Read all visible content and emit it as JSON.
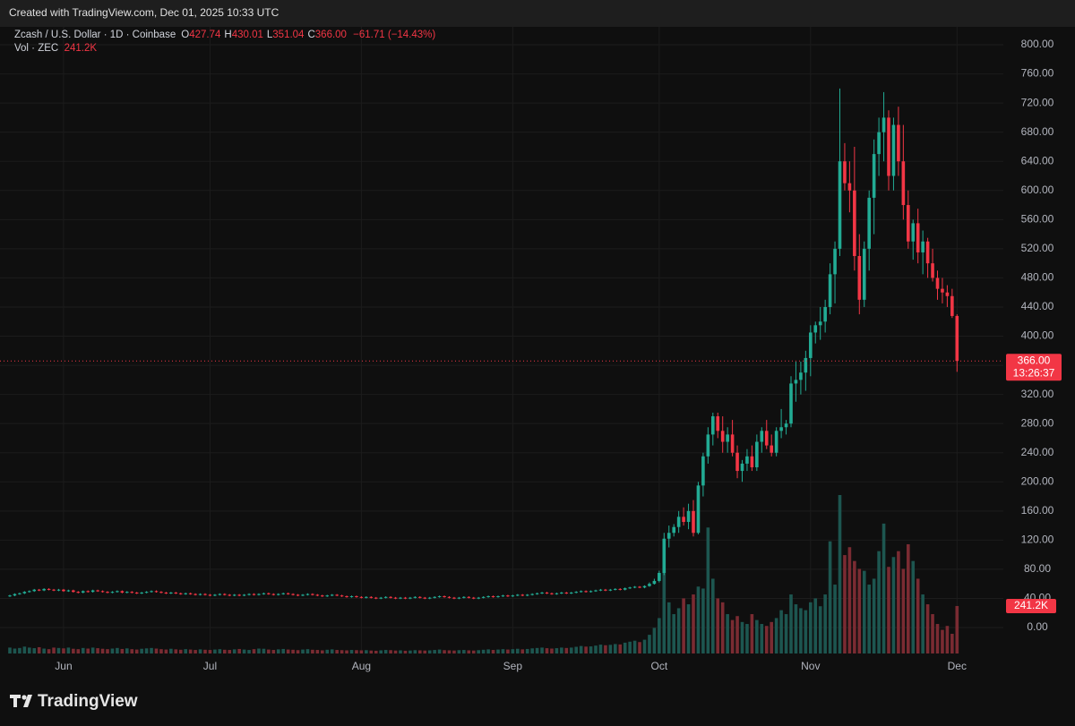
{
  "header": {
    "created": "Created with TradingView.com, Dec 01, 2025 10:33 UTC"
  },
  "footer": {
    "brand": "TradingView"
  },
  "chart_data": {
    "type": "candlestick",
    "title": "Zcash / U.S. Dollar · 1D · Coinbase",
    "ohlc_legend": [
      {
        "key": "O",
        "value": "427.74"
      },
      {
        "key": "H",
        "value": "430.01"
      },
      {
        "key": "L",
        "value": "351.04"
      },
      {
        "key": "C",
        "value": "366.00"
      }
    ],
    "change": "−61.71 (−14.43%)",
    "volume_title": "Vol · ZEC",
    "volume_label": "241.2K",
    "last_price": "366.00",
    "countdown": "13:26:37",
    "up_color": "#22ab94",
    "down_color": "#f23645",
    "volume_up_color": "#1d5650",
    "volume_down_color": "#7a2b32",
    "grid": true,
    "ylim": [
      -35.6,
      824.6
    ],
    "yticks": [
      {
        "value": 0,
        "label": "0.00"
      },
      {
        "value": 40,
        "label": "40.00"
      },
      {
        "value": 80,
        "label": "80.00"
      },
      {
        "value": 120,
        "label": "120.00"
      },
      {
        "value": 160,
        "label": "160.00"
      },
      {
        "value": 200,
        "label": "200.00"
      },
      {
        "value": 240,
        "label": "240.00"
      },
      {
        "value": 280,
        "label": "280.00"
      },
      {
        "value": 320,
        "label": "320.00"
      },
      {
        "value": 360,
        "label": "360.00"
      },
      {
        "value": 400,
        "label": "400.00"
      },
      {
        "value": 440,
        "label": "440.00"
      },
      {
        "value": 480,
        "label": "480.00"
      },
      {
        "value": 520,
        "label": "520.00"
      },
      {
        "value": 560,
        "label": "560.00"
      },
      {
        "value": 600,
        "label": "600.00"
      },
      {
        "value": 640,
        "label": "640.00"
      },
      {
        "value": 680,
        "label": "680.00"
      },
      {
        "value": 720,
        "label": "720.00"
      },
      {
        "value": 760,
        "label": "760.00"
      },
      {
        "value": 800,
        "label": "800.00"
      }
    ],
    "categories": [
      null,
      null,
      null,
      null,
      null,
      null,
      null,
      null,
      null,
      null,
      null,
      "Jun",
      null,
      null,
      null,
      null,
      null,
      null,
      null,
      null,
      null,
      null,
      null,
      null,
      null,
      null,
      null,
      null,
      null,
      null,
      null,
      null,
      null,
      null,
      null,
      null,
      null,
      null,
      null,
      null,
      null,
      "Jul",
      null,
      null,
      null,
      null,
      null,
      null,
      null,
      null,
      null,
      null,
      null,
      null,
      null,
      null,
      null,
      null,
      null,
      null,
      null,
      null,
      null,
      null,
      null,
      null,
      null,
      null,
      null,
      null,
      null,
      null,
      "Aug",
      null,
      null,
      null,
      null,
      null,
      null,
      null,
      null,
      null,
      null,
      null,
      null,
      null,
      null,
      null,
      null,
      null,
      null,
      null,
      null,
      null,
      null,
      null,
      null,
      null,
      null,
      null,
      null,
      null,
      null,
      "Sep",
      null,
      null,
      null,
      null,
      null,
      null,
      null,
      null,
      null,
      null,
      null,
      null,
      null,
      null,
      null,
      null,
      null,
      null,
      null,
      null,
      null,
      null,
      null,
      null,
      null,
      null,
      null,
      null,
      null,
      "Oct",
      null,
      null,
      null,
      null,
      null,
      null,
      null,
      null,
      null,
      null,
      null,
      null,
      null,
      null,
      null,
      null,
      null,
      null,
      null,
      null,
      null,
      null,
      null,
      null,
      null,
      null,
      null,
      null,
      null,
      null,
      "Nov",
      null,
      null,
      null,
      null,
      null,
      null,
      null,
      null,
      null,
      null,
      null,
      null,
      null,
      null,
      null,
      null,
      null,
      null,
      null,
      null,
      null,
      null,
      null,
      null,
      null,
      null,
      null,
      null,
      null,
      "Dec"
    ],
    "open": [
      43,
      44,
      46,
      47,
      49,
      50,
      52,
      51,
      53,
      52,
      51,
      52,
      50,
      51,
      49,
      48,
      50,
      49,
      51,
      50,
      49,
      48,
      49,
      50,
      48,
      49,
      48,
      47,
      48,
      49,
      50,
      49,
      48,
      47,
      48,
      47,
      46,
      47,
      46,
      45,
      46,
      45,
      44,
      45,
      46,
      45,
      44,
      45,
      44,
      45,
      46,
      45,
      46,
      47,
      46,
      45,
      46,
      47,
      46,
      45,
      44,
      45,
      46,
      45,
      44,
      43,
      44,
      45,
      44,
      43,
      42,
      43,
      42,
      41,
      42,
      41,
      40,
      41,
      42,
      41,
      40,
      41,
      40,
      41,
      42,
      41,
      40,
      41,
      42,
      43,
      42,
      41,
      40,
      41,
      42,
      41,
      40,
      41,
      42,
      43,
      42,
      43,
      44,
      43,
      44,
      45,
      44,
      45,
      46,
      47,
      48,
      47,
      46,
      47,
      48,
      47,
      48,
      49,
      50,
      49,
      50,
      51,
      52,
      51,
      52,
      53,
      52,
      54,
      55,
      56,
      55,
      57,
      60,
      64,
      75,
      122,
      130,
      138,
      152,
      145,
      160,
      130,
      195,
      235,
      265,
      290,
      270,
      255,
      265,
      240,
      215,
      225,
      235,
      220,
      255,
      270,
      250,
      240,
      270,
      275,
      280,
      335,
      340,
      350,
      370,
      405,
      415,
      420,
      440,
      485,
      520,
      640,
      610,
      600,
      510,
      450,
      520,
      590,
      650,
      680,
      700,
      620,
      690,
      640,
      580,
      530,
      555,
      515,
      530,
      500,
      480,
      465,
      460,
      455,
      427.74
    ],
    "high": [
      45,
      47,
      48,
      50,
      51,
      53,
      53,
      54,
      54,
      53,
      53,
      53,
      52,
      52,
      50,
      51,
      51,
      52,
      52,
      51,
      50,
      50,
      51,
      51,
      50,
      50,
      49,
      49,
      50,
      51,
      51,
      50,
      49,
      49,
      49,
      48,
      48,
      48,
      47,
      47,
      47,
      46,
      46,
      47,
      47,
      46,
      46,
      46,
      46,
      47,
      47,
      47,
      48,
      48,
      47,
      47,
      48,
      48,
      47,
      46,
      46,
      47,
      47,
      46,
      45,
      45,
      46,
      46,
      45,
      44,
      44,
      44,
      43,
      43,
      43,
      42,
      42,
      43,
      43,
      42,
      42,
      42,
      42,
      43,
      43,
      42,
      42,
      43,
      44,
      44,
      43,
      42,
      42,
      43,
      43,
      42,
      42,
      43,
      44,
      44,
      44,
      45,
      45,
      45,
      46,
      46,
      46,
      47,
      48,
      49,
      49,
      48,
      48,
      49,
      49,
      49,
      50,
      51,
      51,
      51,
      52,
      53,
      53,
      53,
      54,
      54,
      55,
      56,
      57,
      57,
      58,
      62,
      67,
      78,
      130,
      140,
      142,
      160,
      165,
      170,
      175,
      200,
      240,
      275,
      295,
      295,
      290,
      275,
      285,
      250,
      230,
      245,
      250,
      265,
      275,
      285,
      265,
      275,
      300,
      285,
      345,
      365,
      365,
      380,
      415,
      420,
      440,
      450,
      500,
      530,
      740,
      665,
      640,
      660,
      540,
      530,
      600,
      670,
      700,
      735,
      710,
      700,
      715,
      690,
      600,
      560,
      575,
      545,
      535,
      520,
      490,
      480,
      470,
      465,
      430.01
    ],
    "low": [
      42,
      43,
      45,
      46,
      48,
      49,
      50,
      50,
      51,
      50,
      50,
      49,
      49,
      48,
      47,
      47,
      48,
      48,
      49,
      48,
      47,
      47,
      48,
      47,
      47,
      47,
      46,
      46,
      47,
      48,
      48,
      47,
      46,
      46,
      46,
      45,
      45,
      45,
      44,
      44,
      44,
      43,
      43,
      44,
      44,
      43,
      43,
      43,
      43,
      44,
      44,
      44,
      45,
      45,
      44,
      44,
      45,
      45,
      44,
      43,
      43,
      44,
      44,
      43,
      42,
      42,
      43,
      43,
      42,
      41,
      41,
      41,
      40,
      40,
      40,
      39,
      39,
      40,
      40,
      39,
      39,
      39,
      39,
      40,
      40,
      39,
      39,
      40,
      41,
      41,
      40,
      39,
      39,
      40,
      40,
      39,
      39,
      40,
      41,
      41,
      41,
      42,
      42,
      42,
      43,
      43,
      43,
      44,
      45,
      46,
      46,
      45,
      45,
      46,
      46,
      46,
      47,
      48,
      48,
      48,
      49,
      50,
      50,
      50,
      51,
      51,
      51,
      53,
      54,
      54,
      54,
      56,
      59,
      62,
      72,
      110,
      125,
      130,
      140,
      135,
      125,
      128,
      180,
      225,
      250,
      260,
      240,
      240,
      235,
      205,
      200,
      215,
      215,
      215,
      240,
      245,
      235,
      235,
      260,
      265,
      275,
      310,
      320,
      325,
      345,
      390,
      395,
      405,
      430,
      445,
      510,
      600,
      570,
      490,
      430,
      440,
      490,
      540,
      620,
      640,
      600,
      600,
      620,
      560,
      520,
      505,
      500,
      485,
      480,
      475,
      450,
      445,
      440,
      425,
      351.04
    ],
    "close": [
      44,
      46,
      47,
      49,
      50,
      52,
      51,
      53,
      52,
      51,
      52,
      50,
      51,
      49,
      48,
      50,
      49,
      51,
      50,
      49,
      48,
      49,
      50,
      48,
      49,
      48,
      47,
      48,
      49,
      50,
      49,
      48,
      47,
      48,
      47,
      46,
      47,
      46,
      45,
      46,
      45,
      44,
      45,
      46,
      45,
      44,
      45,
      44,
      45,
      46,
      45,
      46,
      47,
      46,
      45,
      46,
      47,
      46,
      45,
      44,
      45,
      46,
      45,
      44,
      43,
      44,
      45,
      44,
      43,
      42,
      43,
      42,
      41,
      42,
      41,
      40,
      41,
      42,
      41,
      40,
      41,
      40,
      41,
      42,
      41,
      40,
      41,
      42,
      43,
      42,
      41,
      40,
      41,
      42,
      41,
      40,
      41,
      42,
      43,
      42,
      43,
      44,
      43,
      44,
      45,
      44,
      45,
      46,
      47,
      48,
      47,
      46,
      47,
      48,
      47,
      48,
      49,
      50,
      49,
      50,
      51,
      52,
      51,
      52,
      53,
      52,
      54,
      55,
      56,
      55,
      57,
      60,
      64,
      75,
      122,
      130,
      138,
      152,
      145,
      160,
      130,
      195,
      235,
      265,
      290,
      270,
      255,
      265,
      240,
      215,
      225,
      235,
      220,
      255,
      270,
      250,
      240,
      270,
      275,
      280,
      335,
      340,
      350,
      370,
      405,
      415,
      420,
      440,
      485,
      520,
      640,
      610,
      600,
      510,
      450,
      520,
      590,
      650,
      680,
      700,
      620,
      690,
      640,
      580,
      530,
      555,
      515,
      530,
      500,
      480,
      465,
      460,
      455,
      427.71,
      366
    ],
    "volume": [
      30,
      25,
      28,
      35,
      30,
      27,
      32,
      25,
      22,
      30,
      28,
      26,
      30,
      24,
      22,
      28,
      25,
      30,
      27,
      24,
      22,
      25,
      28,
      23,
      26,
      22,
      20,
      24,
      26,
      28,
      25,
      22,
      20,
      24,
      21,
      19,
      22,
      20,
      18,
      21,
      19,
      18,
      20,
      22,
      19,
      18,
      21,
      23,
      20,
      18,
      22,
      25,
      24,
      20,
      18,
      21,
      23,
      20,
      19,
      17,
      20,
      22,
      19,
      18,
      16,
      19,
      21,
      18,
      17,
      16,
      18,
      17,
      16,
      17,
      15,
      14,
      16,
      18,
      17,
      15,
      16,
      14,
      15,
      17,
      16,
      15,
      16,
      18,
      20,
      17,
      16,
      15,
      17,
      18,
      16,
      15,
      17,
      19,
      21,
      18,
      20,
      22,
      20,
      22,
      24,
      21,
      23,
      26,
      28,
      30,
      27,
      25,
      27,
      30,
      28,
      30,
      34,
      38,
      35,
      36,
      40,
      45,
      42,
      44,
      48,
      46,
      55,
      60,
      65,
      58,
      70,
      95,
      130,
      180,
      420,
      260,
      200,
      230,
      280,
      250,
      300,
      340,
      330,
      640,
      380,
      280,
      260,
      200,
      170,
      190,
      160,
      150,
      200,
      170,
      150,
      140,
      160,
      180,
      220,
      200,
      300,
      250,
      230,
      220,
      260,
      280,
      240,
      300,
      570,
      350,
      805,
      500,
      540,
      470,
      430,
      420,
      350,
      380,
      520,
      660,
      440,
      490,
      520,
      430,
      555,
      470,
      380,
      300,
      250,
      200,
      150,
      120,
      140,
      100,
      241.2
    ]
  }
}
